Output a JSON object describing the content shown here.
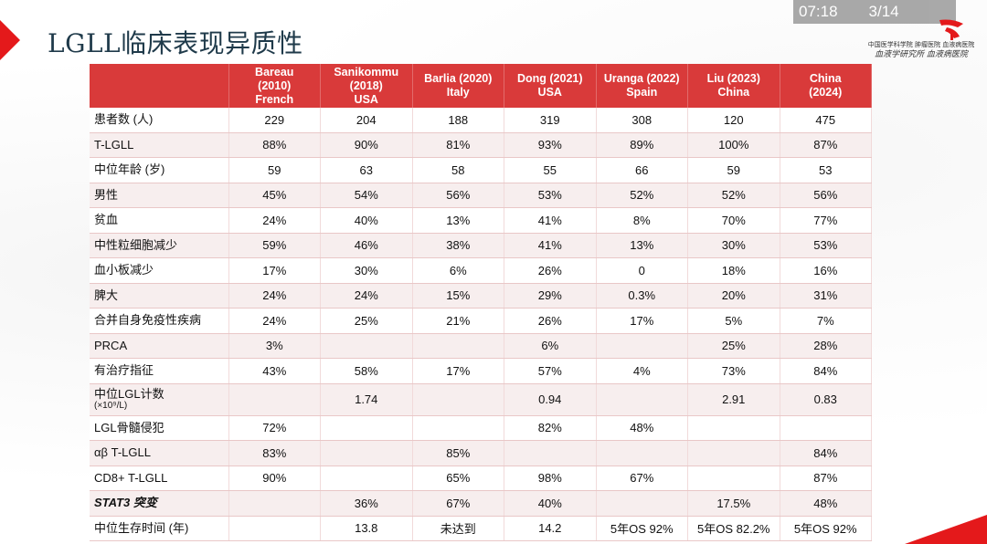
{
  "video": {
    "time": "07:18",
    "page": "3/14"
  },
  "slide": {
    "title": "LGLL临床表现异质性"
  },
  "logo": {
    "line1": "中国医学科学院 肿瘤医院 血液病医院",
    "line2": "血液学研究所 血液病医院"
  },
  "table": {
    "headers": [
      {
        "line1": "",
        "line2": "",
        "line3": ""
      },
      {
        "line1": "Bareau",
        "line2": "(2010)",
        "line3": "French"
      },
      {
        "line1": "Sanikommu",
        "line2": "(2018)",
        "line3": "USA"
      },
      {
        "line1": "Barlia (2020)",
        "line2": "Italy",
        "line3": ""
      },
      {
        "line1": "Dong (2021)",
        "line2": "USA",
        "line3": ""
      },
      {
        "line1": "Uranga (2022)",
        "line2": "Spain",
        "line3": ""
      },
      {
        "line1": "Liu (2023)",
        "line2": "China",
        "line3": ""
      },
      {
        "line1": "China",
        "line2": "(2024)",
        "line3": ""
      }
    ],
    "rows": [
      {
        "label": "患者数 (人)",
        "sub": "",
        "cells": [
          "229",
          "204",
          "188",
          "319",
          "308",
          "120",
          "475"
        ]
      },
      {
        "label": " T-LGLL",
        "sub": "",
        "cells": [
          "88%",
          "90%",
          "81%",
          "93%",
          "89%",
          "100%",
          "87%"
        ]
      },
      {
        "label": "中位年龄 (岁)",
        "sub": "",
        "cells": [
          "59",
          "63",
          "58",
          "55",
          "66",
          "59",
          "53"
        ]
      },
      {
        "label": "男性",
        "sub": "",
        "cells": [
          "45%",
          "54%",
          "56%",
          "53%",
          "52%",
          "52%",
          "56%"
        ]
      },
      {
        "label": "贫血",
        "sub": "",
        "cells": [
          "24%",
          "40%",
          "13%",
          "41%",
          "8%",
          "70%",
          "77%"
        ]
      },
      {
        "label": "中性粒细胞减少",
        "sub": "",
        "cells": [
          "59%",
          "46%",
          "38%",
          "41%",
          "13%",
          "30%",
          "53%"
        ]
      },
      {
        "label": "血小板减少",
        "sub": "",
        "cells": [
          "17%",
          "30%",
          "6%",
          "26%",
          "0",
          "18%",
          "16%"
        ]
      },
      {
        "label": "脾大",
        "sub": "",
        "cells": [
          "24%",
          "24%",
          "15%",
          "29%",
          "0.3%",
          "20%",
          "31%"
        ]
      },
      {
        "label": "合并自身免疫性疾病",
        "sub": "",
        "cells": [
          "24%",
          "25%",
          "21%",
          "26%",
          "17%",
          "5%",
          "7%"
        ]
      },
      {
        "label": "PRCA",
        "sub": "",
        "cells": [
          "3%",
          "",
          "",
          "6%",
          "",
          "25%",
          "28%"
        ]
      },
      {
        "label": "有治疗指征",
        "sub": "",
        "cells": [
          "43%",
          "58%",
          "17%",
          "57%",
          "4%",
          "73%",
          "84%"
        ]
      },
      {
        "label": "中位LGL计数",
        "sub": "(×10⁹/L)",
        "cells": [
          "",
          "1.74",
          "",
          "0.94",
          "",
          "2.91",
          "0.83"
        ]
      },
      {
        "label": "LGL骨髓侵犯",
        "sub": "",
        "cells": [
          "72%",
          "",
          "",
          "82%",
          "48%",
          "",
          ""
        ]
      },
      {
        "label": "αβ T-LGLL",
        "sub": "",
        "cells": [
          "83%",
          "",
          "85%",
          "",
          "",
          "",
          "84%"
        ]
      },
      {
        "label": "CD8+ T-LGLL",
        "sub": "",
        "cells": [
          "90%",
          "",
          "65%",
          "98%",
          "67%",
          "",
          "87%"
        ]
      },
      {
        "label": "STAT3 突变",
        "sub": "",
        "cells": [
          "",
          "36%",
          "67%",
          "40%",
          "",
          "17.5%",
          "48%"
        ]
      },
      {
        "label": "中位生存时间 (年)",
        "sub": "",
        "cells": [
          "",
          "13.8",
          "未达到",
          "14.2",
          "5年OS 92%",
          "5年OS 82.2%",
          "5年OS 92%"
        ]
      }
    ]
  }
}
